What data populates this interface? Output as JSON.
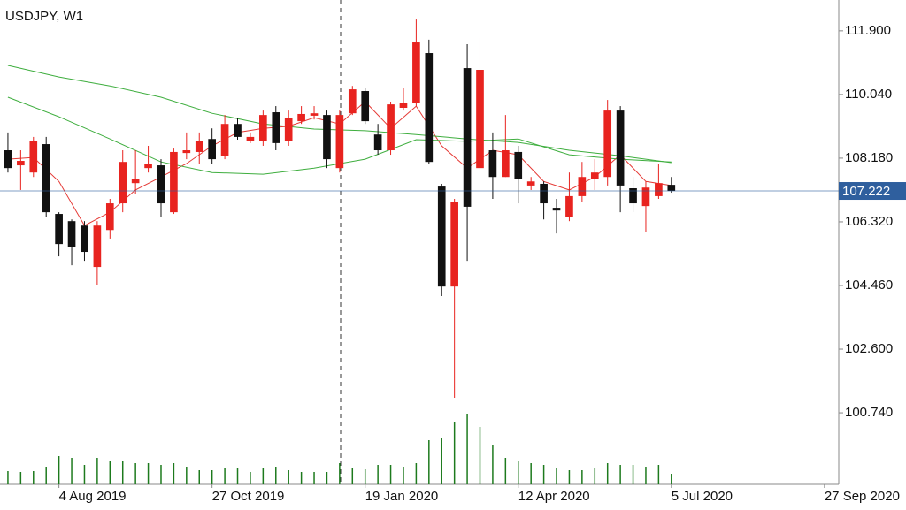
{
  "chart_data": {
    "type": "candlestick",
    "title": "USDJPY, W1",
    "up_color": "#e8231f",
    "down_color": "#111111",
    "ylim": [
      98.65,
      112.8
    ],
    "yticks": [
      {
        "value": 111.9,
        "label": "111.900"
      },
      {
        "value": 110.04,
        "label": "110.040"
      },
      {
        "value": 108.18,
        "label": "108.180"
      },
      {
        "value": 106.32,
        "label": "106.320"
      },
      {
        "value": 104.46,
        "label": "104.460"
      },
      {
        "value": 102.6,
        "label": "102.600"
      },
      {
        "value": 100.74,
        "label": "100.740"
      }
    ],
    "xlim": [
      -0.62,
      65.12
    ],
    "xticks": [
      {
        "value": 4,
        "label": "4 Aug 2019"
      },
      {
        "value": 16,
        "label": "27 Oct 2019"
      },
      {
        "value": 28,
        "label": "19 Jan 2020"
      },
      {
        "value": 40,
        "label": "12 Apr 2020"
      },
      {
        "value": 52,
        "label": "5 Jul 2020"
      },
      {
        "value": 64,
        "label": "27 Sep 2020"
      }
    ],
    "open": [
      108.41,
      107.97,
      107.76,
      108.59,
      106.55,
      106.34,
      106.21,
      105.0,
      106.08,
      106.86,
      107.45,
      107.89,
      107.97,
      106.6,
      108.33,
      108.36,
      108.74,
      108.25,
      109.18,
      108.67,
      108.69,
      109.52,
      108.67,
      109.26,
      109.42,
      109.44,
      107.89,
      109.49,
      110.14,
      108.87,
      108.41,
      109.65,
      109.78,
      111.25,
      107.35,
      104.43,
      110.81,
      107.89,
      108.41,
      107.63,
      108.36,
      107.38,
      107.43,
      106.73,
      106.47,
      107.07,
      107.56,
      107.63,
      109.57,
      107.3,
      106.78,
      107.07,
      107.4
    ],
    "high": [
      108.93,
      108.41,
      108.8,
      108.8,
      106.6,
      106.39,
      106.34,
      106.34,
      106.99,
      108.41,
      108.41,
      108.54,
      108.15,
      108.46,
      108.93,
      108.93,
      109.05,
      109.44,
      109.36,
      108.93,
      109.57,
      109.7,
      109.57,
      109.7,
      109.7,
      109.57,
      109.57,
      110.29,
      110.22,
      109.18,
      109.83,
      110.22,
      112.23,
      111.64,
      107.43,
      106.99,
      111.51,
      111.69,
      108.93,
      109.44,
      108.54,
      107.63,
      107.5,
      106.99,
      107.76,
      108.07,
      108.15,
      109.88,
      109.7,
      107.63,
      107.5,
      108.02,
      107.63
    ],
    "low": [
      107.76,
      107.25,
      107.63,
      106.47,
      105.31,
      105.05,
      105.18,
      104.46,
      105.83,
      106.6,
      107.12,
      107.76,
      106.47,
      106.55,
      108.15,
      108.02,
      108.02,
      108.15,
      108.72,
      108.62,
      108.54,
      108.41,
      108.54,
      109.18,
      109.31,
      107.89,
      107.76,
      109.44,
      109.18,
      108.28,
      108.28,
      109.57,
      109.7,
      108.02,
      104.15,
      101.18,
      105.18,
      107.76,
      106.99,
      107.63,
      106.86,
      107.25,
      106.39,
      105.98,
      106.34,
      106.91,
      107.25,
      107.38,
      106.6,
      106.6,
      106.03,
      106.99,
      107.17
    ],
    "close": [
      107.89,
      108.1,
      108.67,
      106.6,
      105.67,
      105.59,
      105.44,
      106.21,
      106.86,
      108.07,
      107.56,
      108.0,
      106.86,
      108.36,
      108.41,
      108.67,
      108.15,
      109.18,
      108.8,
      108.8,
      109.44,
      108.62,
      109.36,
      109.47,
      109.49,
      108.15,
      109.44,
      110.19,
      109.26,
      108.41,
      109.75,
      109.78,
      111.56,
      108.07,
      104.43,
      106.91,
      106.76,
      110.76,
      107.63,
      108.41,
      107.56,
      107.5,
      106.86,
      106.65,
      107.07,
      107.63,
      107.76,
      109.57,
      107.38,
      106.86,
      107.32,
      107.45,
      107.222
    ],
    "volume": [
      15000,
      14000,
      15000,
      20000,
      32000,
      30000,
      22000,
      30000,
      26000,
      26000,
      24000,
      24000,
      22000,
      24000,
      20000,
      16000,
      16000,
      18000,
      18000,
      14000,
      18000,
      20000,
      16000,
      14000,
      14000,
      14000,
      24000,
      18000,
      17000,
      22000,
      22000,
      20000,
      24000,
      50000,
      53000,
      70000,
      80000,
      65000,
      45000,
      30000,
      26000,
      24000,
      22000,
      18000,
      16000,
      16000,
      18000,
      24000,
      22000,
      22000,
      20000,
      22000,
      12000
    ],
    "volume_color": "#1d7a1d",
    "current_price": 107.222,
    "current_price_color": "#2f5f9e",
    "lines": [
      {
        "color": "#e53935",
        "x": [
          0,
          2,
          4,
          6,
          8,
          10,
          12,
          14,
          16,
          18,
          20,
          22,
          24,
          26,
          28,
          30,
          32,
          34,
          36,
          38,
          40,
          42,
          44,
          46,
          48,
          50,
          52
        ],
        "values": [
          108.15,
          108.2,
          107.5,
          106.21,
          106.6,
          107.25,
          107.63,
          108.02,
          108.54,
          108.93,
          109.05,
          109.11,
          109.36,
          109.18,
          109.83,
          109.05,
          109.7,
          108.54,
          107.89,
          108.41,
          108.28,
          107.5,
          107.25,
          107.63,
          108.28,
          107.5,
          107.38
        ]
      },
      {
        "color": "#3fae3f",
        "x": [
          0,
          4,
          8,
          12,
          16,
          20,
          24,
          28,
          32,
          36,
          40,
          44,
          48,
          52
        ],
        "values": [
          110.89,
          110.55,
          110.29,
          109.96,
          109.49,
          109.18,
          109.03,
          108.98,
          108.87,
          108.74,
          108.64,
          108.41,
          108.25,
          108.05
        ]
      },
      {
        "color": "#3fae3f",
        "x": [
          0,
          4,
          8,
          12,
          16,
          20,
          24,
          28,
          32,
          36,
          40,
          44,
          48,
          52
        ],
        "values": [
          109.96,
          109.39,
          108.74,
          108.07,
          107.76,
          107.71,
          107.89,
          108.15,
          108.72,
          108.67,
          108.74,
          108.28,
          108.15,
          108.07
        ]
      }
    ]
  }
}
